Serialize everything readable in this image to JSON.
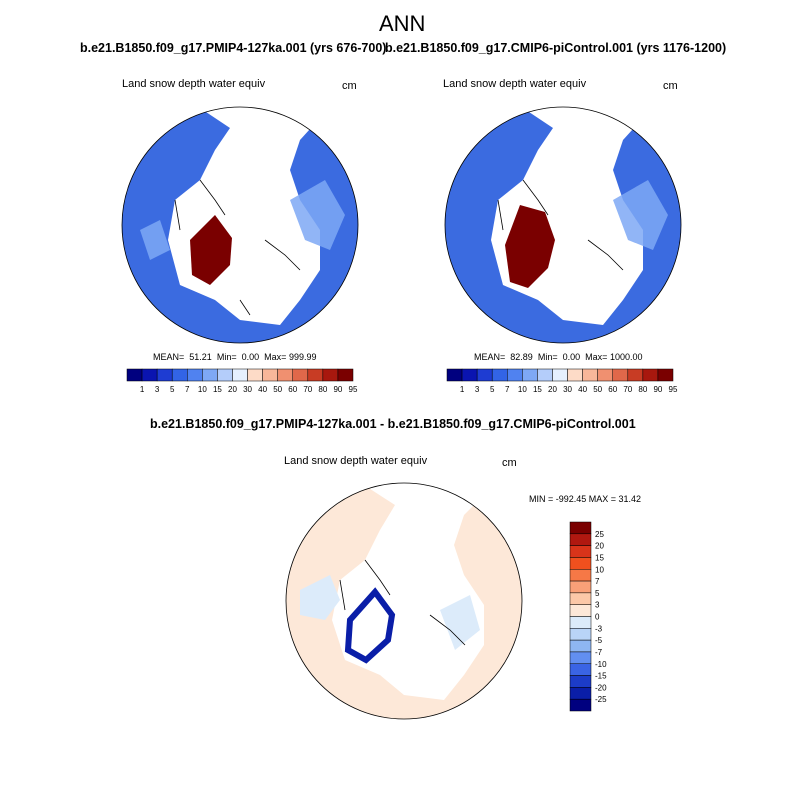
{
  "page": {
    "title": "ANN"
  },
  "panels": {
    "left": {
      "case_title": "b.e21.B1850.f09_g17.PMIP4-127ka.001 (yrs 676-700)",
      "variable": "Land snow depth water equiv",
      "units": "cm",
      "stats": {
        "mean_label": "MEAN=",
        "mean": "51.21",
        "min_label": "Min=",
        "min": "0.00",
        "max_label": "Max=",
        "max": "999.99"
      }
    },
    "right": {
      "case_title": "b.e21.B1850.f09_g17.CMIP6-piControl.001 (yrs 1176-1200)",
      "variable": "Land snow depth water equiv",
      "units": "cm",
      "stats": {
        "mean_label": "MEAN=",
        "mean": "82.89",
        "min_label": "Min=",
        "min": "0.00",
        "max_label": "Max=",
        "max": "1000.00"
      }
    },
    "diff": {
      "title": "b.e21.B1850.f09_g17.PMIP4-127ka.001 - b.e21.B1850.f09_g17.CMIP6-piControl.001",
      "variable": "Land snow depth water equiv",
      "units": "cm",
      "stats_text": "MIN = -992.45 MAX =  31.42"
    }
  },
  "colorbar_top": {
    "labels": [
      "1",
      "3",
      "5",
      "7",
      "10",
      "15",
      "20",
      "30",
      "40",
      "50",
      "60",
      "70",
      "80",
      "90",
      "95"
    ],
    "colors": [
      "#00007f",
      "#0a14b0",
      "#1e3cd2",
      "#3264e6",
      "#5082f0",
      "#7ea8f5",
      "#b4cdfa",
      "#e6f0fe",
      "#fddbc7",
      "#f8b79a",
      "#f09070",
      "#e0684a",
      "#c83c24",
      "#a8180e",
      "#7a0000"
    ]
  },
  "colorbar_diff": {
    "labels": [
      "25",
      "20",
      "15",
      "10",
      "7",
      "5",
      "3",
      "0",
      "-3",
      "-5",
      "-7",
      "-10",
      "-15",
      "-20",
      "-25"
    ],
    "colors": [
      "#7a0000",
      "#b01810",
      "#d8341a",
      "#f0501e",
      "#f67846",
      "#f9a078",
      "#fcc8a8",
      "#fde8d8",
      "#dcebfa",
      "#b9d4f7",
      "#8eb6f2",
      "#628ff0",
      "#3a64e4",
      "#1c3cc8",
      "#0a1ea8",
      "#00007f"
    ]
  },
  "colors": {
    "snow_deep": "#7a0000",
    "snow_mid": "#3b6be0",
    "snow_light": "#7ea8f5",
    "diff_base": "#fde8d8",
    "diff_neg": "#dcebfa",
    "diff_strong": "#0a1ea8"
  }
}
